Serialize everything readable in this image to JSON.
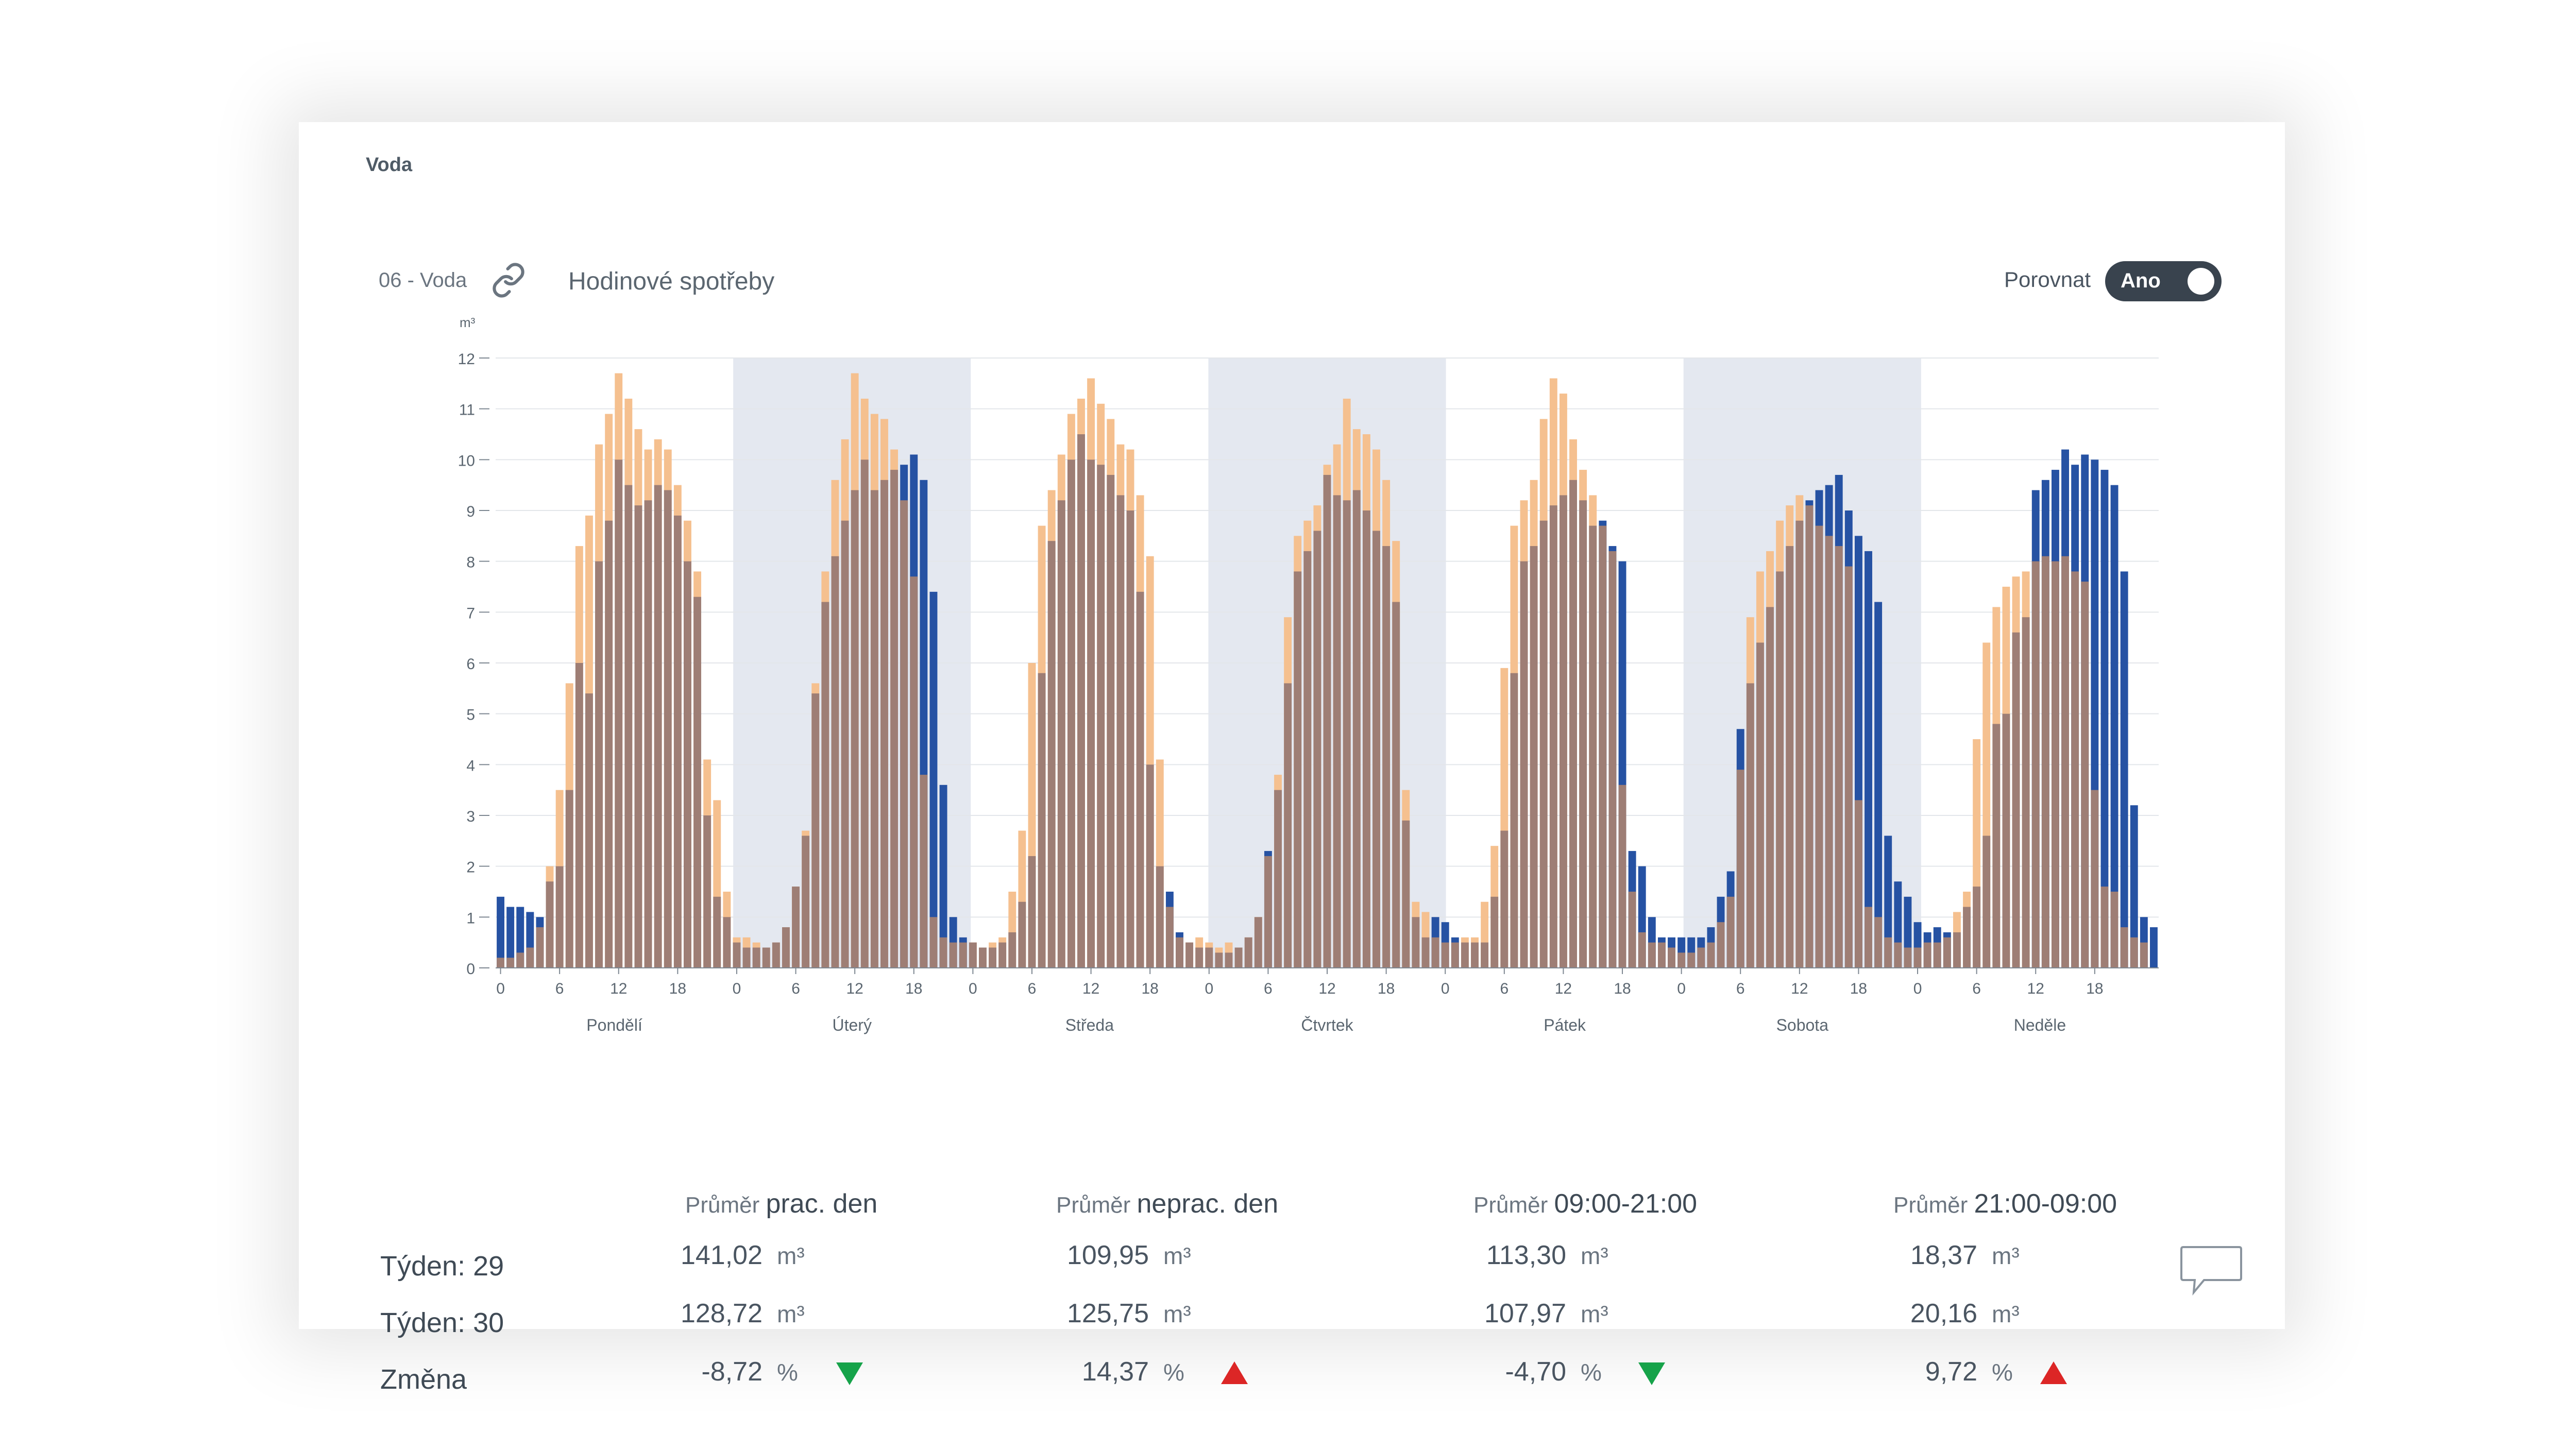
{
  "card_title": "Voda",
  "meter": {
    "label": "06 - Voda"
  },
  "chart_title": "Hodinové spotřeby",
  "compare": {
    "label": "Porovnat",
    "toggle": "Ano"
  },
  "colors": {
    "current": "#2652a3",
    "previous": "#f5c08f",
    "overlap": "#9e7e75",
    "band": "#e4e8f0",
    "down": "#16a34a",
    "up": "#dc2626"
  },
  "icons": [
    "link-icon",
    "comment-icon",
    "arrow-down-icon",
    "arrow-up-icon"
  ],
  "chart_data": {
    "type": "bar",
    "ylabel": "m³",
    "ylim": [
      0,
      12
    ],
    "yticks": [
      "0",
      "1",
      "2",
      "3",
      "4",
      "5",
      "6",
      "7",
      "8",
      "9",
      "10",
      "11",
      "12"
    ],
    "xtick_labels": [
      "0",
      "6",
      "12",
      "18"
    ],
    "days": [
      "Pondělí",
      "Úterý",
      "Středa",
      "Čtvrtek",
      "Pátek",
      "Sobota",
      "Neděle"
    ],
    "shaded_days": [
      1,
      3,
      5
    ],
    "grid": true,
    "series": [
      {
        "name": "Týden: 29",
        "role": "previous",
        "values": [
          0.2,
          0.2,
          0.3,
          0.4,
          0.8,
          2.0,
          3.5,
          5.6,
          8.3,
          8.9,
          10.3,
          10.9,
          11.7,
          11.2,
          10.6,
          10.2,
          10.4,
          10.2,
          9.5,
          8.8,
          7.8,
          4.1,
          3.3,
          1.5,
          0.6,
          0.6,
          0.5,
          0.4,
          0.5,
          0.8,
          1.6,
          2.7,
          5.6,
          7.8,
          9.6,
          10.4,
          11.7,
          11.2,
          10.9,
          10.8,
          10.2,
          9.2,
          7.7,
          3.8,
          1.0,
          0.6,
          0.5,
          0.5,
          0.5,
          0.4,
          0.5,
          0.6,
          1.5,
          2.7,
          6.0,
          8.7,
          9.4,
          10.1,
          10.9,
          11.2,
          11.6,
          11.1,
          10.8,
          10.3,
          10.2,
          9.3,
          8.1,
          4.1,
          1.2,
          0.6,
          0.5,
          0.6,
          0.5,
          0.4,
          0.5,
          0.4,
          0.6,
          1.0,
          2.2,
          3.8,
          6.9,
          8.5,
          8.8,
          9.1,
          9.9,
          10.3,
          11.2,
          10.6,
          10.5,
          10.2,
          9.6,
          8.4,
          3.5,
          1.3,
          1.1,
          0.6,
          0.5,
          0.5,
          0.6,
          0.6,
          1.3,
          2.4,
          5.9,
          8.7,
          9.2,
          9.6,
          10.8,
          11.6,
          11.3,
          10.4,
          9.8,
          9.3,
          8.7,
          8.2,
          3.6,
          1.5,
          0.7,
          0.5,
          0.5,
          0.4,
          0.3,
          0.3,
          0.4,
          0.5,
          0.9,
          1.4,
          3.9,
          6.9,
          7.8,
          8.2,
          8.8,
          9.1,
          9.3,
          9.1,
          8.7,
          8.5,
          8.3,
          7.9,
          3.3,
          1.2,
          1.0,
          0.6,
          0.5,
          0.4,
          0.4,
          0.5,
          0.5,
          0.6,
          1.1,
          1.5,
          4.5,
          6.4,
          7.1,
          7.5,
          7.7,
          7.8,
          8.0,
          8.1,
          8.0,
          8.1,
          7.8,
          7.6,
          3.5,
          1.6,
          1.5,
          0.8,
          0.6,
          0.5
        ]
      },
      {
        "name": "Týden: 30",
        "role": "current",
        "values": [
          1.4,
          1.2,
          1.2,
          1.1,
          1.0,
          1.7,
          2.0,
          3.5,
          6.0,
          5.4,
          8.0,
          8.8,
          10.0,
          9.5,
          9.1,
          9.2,
          9.5,
          9.4,
          8.9,
          8.0,
          7.3,
          3.0,
          1.4,
          1.0,
          0.5,
          0.4,
          0.4,
          0.4,
          0.5,
          0.8,
          1.6,
          2.6,
          5.4,
          7.2,
          8.1,
          8.8,
          9.4,
          10.0,
          9.4,
          9.6,
          9.8,
          9.9,
          10.1,
          9.6,
          7.4,
          3.6,
          1.0,
          0.6,
          0.5,
          0.4,
          0.4,
          0.5,
          0.7,
          1.3,
          2.2,
          5.8,
          8.4,
          9.2,
          10.0,
          10.5,
          10.0,
          9.9,
          9.7,
          9.3,
          9.0,
          7.4,
          4.0,
          2.0,
          1.5,
          0.7,
          0.5,
          0.4,
          0.4,
          0.3,
          0.3,
          0.4,
          0.6,
          1.0,
          2.3,
          3.5,
          5.6,
          7.8,
          8.2,
          8.6,
          9.7,
          9.3,
          9.2,
          9.4,
          9.0,
          8.6,
          8.3,
          7.2,
          2.9,
          1.0,
          0.6,
          1.0,
          0.9,
          0.6,
          0.5,
          0.5,
          0.5,
          1.4,
          2.7,
          5.8,
          8.0,
          8.3,
          8.8,
          9.1,
          9.3,
          9.6,
          9.2,
          8.7,
          8.8,
          8.3,
          8.0,
          2.3,
          2.0,
          1.0,
          0.6,
          0.6,
          0.6,
          0.6,
          0.6,
          0.8,
          1.4,
          1.9,
          4.7,
          5.6,
          6.4,
          7.1,
          7.8,
          8.3,
          8.8,
          9.2,
          9.4,
          9.5,
          9.7,
          9.0,
          8.5,
          8.2,
          7.2,
          2.6,
          1.7,
          1.4,
          0.9,
          0.7,
          0.8,
          0.7,
          0.7,
          1.2,
          1.6,
          2.6,
          4.8,
          5.0,
          6.6,
          6.9,
          9.4,
          9.6,
          9.8,
          10.2,
          9.9,
          10.1,
          10.0,
          9.8,
          9.5,
          7.8,
          3.2,
          1.0,
          0.8
        ]
      }
    ]
  },
  "stats": {
    "headers": [
      {
        "prefix": "Průměr",
        "main": "prac. den"
      },
      {
        "prefix": "Průměr",
        "main": "neprac. den"
      },
      {
        "prefix": "Průměr",
        "main": "09:00-21:00"
      },
      {
        "prefix": "Průměr",
        "main": "21:00-09:00"
      }
    ],
    "rows": [
      {
        "label": "Týden: 29",
        "values": [
          "141,02",
          "109,95",
          "113,30",
          "18,37"
        ],
        "unit": "m³"
      },
      {
        "label": "Týden: 30",
        "values": [
          "128,72",
          "125,75",
          "107,97",
          "20,16"
        ],
        "unit": "m³"
      },
      {
        "label": "Změna",
        "values": [
          "-8,72",
          "14,37",
          "-4,70",
          "9,72"
        ],
        "unit": "%",
        "trend": [
          "down",
          "up",
          "down",
          "up"
        ]
      }
    ]
  }
}
